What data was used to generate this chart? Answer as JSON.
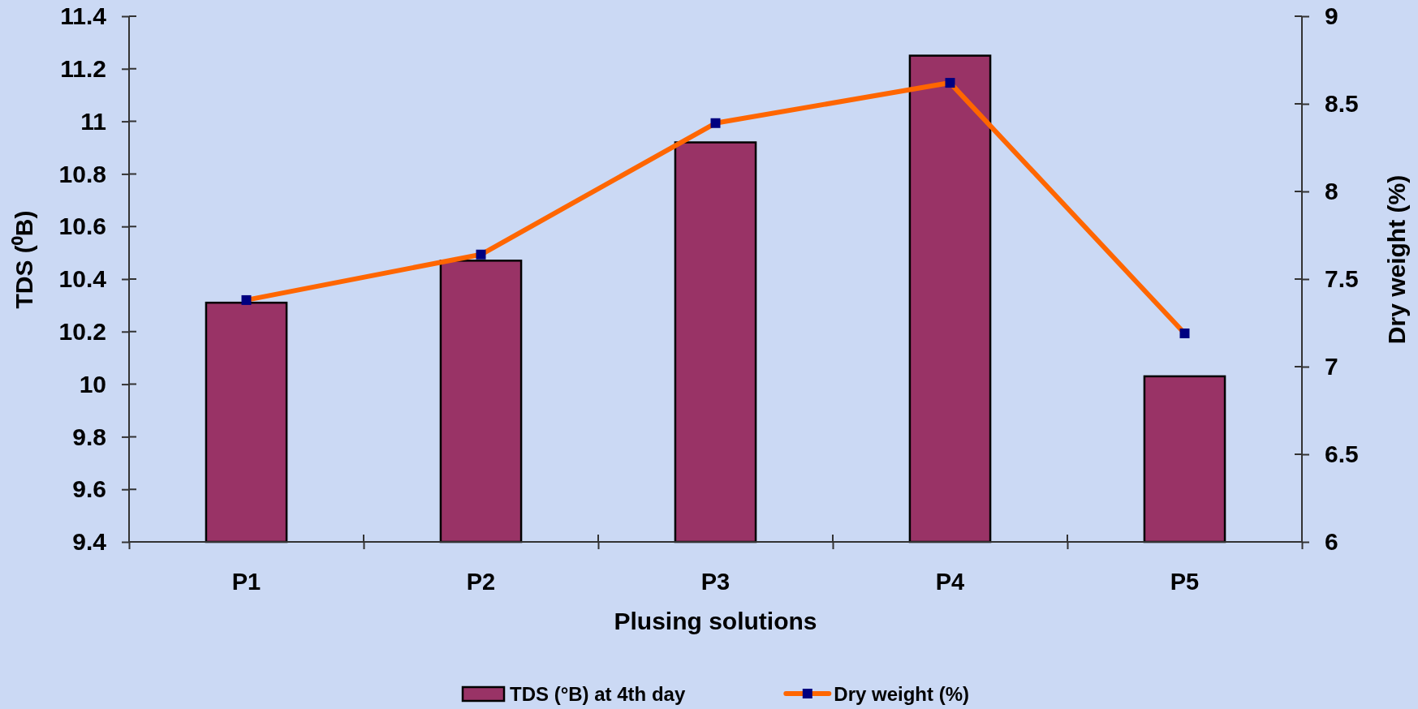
{
  "chart_data": {
    "type": "bar",
    "categories": [
      "P1",
      "P2",
      "P3",
      "P4",
      "P5"
    ],
    "xlabel": "Plusing solutions",
    "ylabel": "TDS (⁰B)",
    "y2label": "Dry weight (%)",
    "ylim": [
      9.4,
      11.4
    ],
    "yticks": [
      9.4,
      9.6,
      9.8,
      10,
      10.2,
      10.4,
      10.6,
      10.8,
      11,
      11.2,
      11.4
    ],
    "y2lim": [
      6,
      9
    ],
    "y2ticks": [
      6,
      6.5,
      7,
      7.5,
      8,
      8.5,
      9
    ],
    "series": [
      {
        "name": "TDS (°B) at 4th day",
        "color": "#993366",
        "values": [
          10.31,
          10.47,
          10.92,
          11.25,
          10.03
        ]
      },
      {
        "name": "Dry weight (%)",
        "type": "line",
        "axis": "y2",
        "color": "#ff6600",
        "values": [
          7.38,
          7.64,
          8.39,
          8.62,
          7.19
        ]
      }
    ],
    "legend": "bottom",
    "marker": "square",
    "line_style": "solid"
  }
}
